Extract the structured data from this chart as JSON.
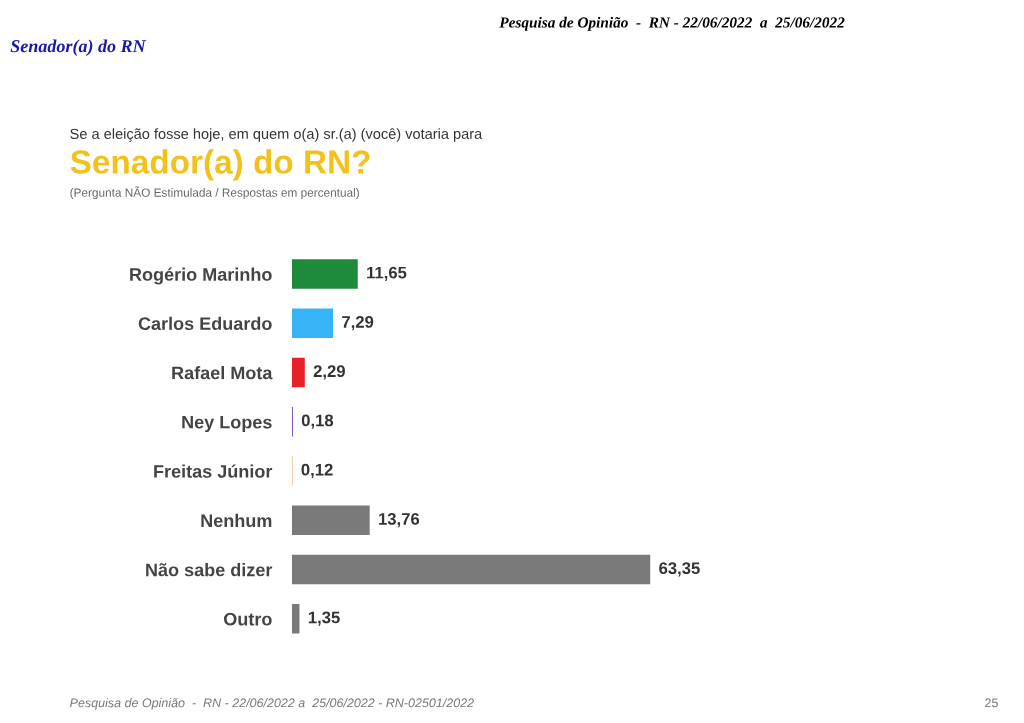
{
  "chart_data": {
    "type": "bar",
    "orientation": "horizontal",
    "title": "Senador(a) do RN?",
    "subtitle": "(Pergunta NÃO Estimulada / Respostas em percentual)",
    "categories": [
      "Rogério Marinho",
      "Carlos Eduardo",
      "Rafael Mota",
      "Ney Lopes",
      "Freitas Júnior",
      "Nenhum",
      "Não sabe dizer",
      "Outro"
    ],
    "values": [
      11.65,
      7.29,
      2.29,
      0.18,
      0.12,
      13.76,
      63.35,
      1.35
    ],
    "colors": [
      "#1e8a3c",
      "#36b4f5",
      "#e8202a",
      "#6a3fb0",
      "#e8a060",
      "#7a7a7a",
      "#7a7a7a",
      "#7a7a7a"
    ],
    "value_labels": [
      "11,65",
      "7,29",
      "2,29",
      "0,18",
      "0,12",
      "13,76",
      "63,35",
      "1,35"
    ],
    "tick_labels": false,
    "grid": false,
    "annotations": [
      "Pesquisa de Opinião  -  RN - 22/06/2022  a  25/06/2022",
      "Senador(a) do RN",
      "Se a eleição fosse hoje, em quem o(a) sr.(a) (você) votaria para",
      "Pesquisa de Opinião  -  RN - 22/06/2022 a  25/06/2022 - RN-02501/2022",
      "25"
    ]
  }
}
